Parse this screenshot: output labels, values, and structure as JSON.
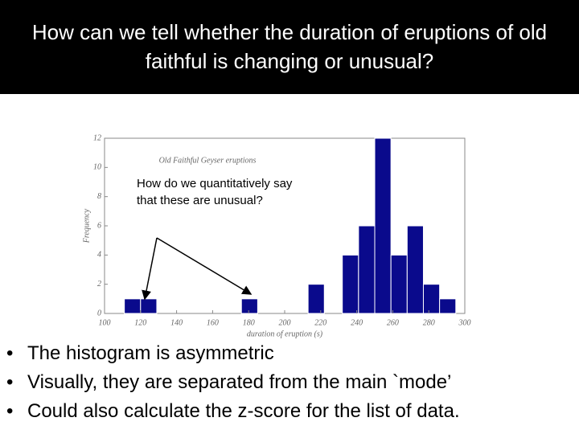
{
  "title": "How can we tell whether the duration of eruptions of old faithful is changing or unusual?",
  "annotation": "How do we quantitatively say that these are unusual?",
  "bullets": [
    "The histogram is asymmetric",
    "Visually, they are separated from the main `mode’",
    "Could also calculate the z-score for the list of data."
  ],
  "chart_data": {
    "type": "histogram",
    "title": "Old Faithful Geyser eruptions",
    "x_label": "duration of eruption (s)",
    "y_label": "Frequency",
    "bins": [
      111,
      120,
      129,
      176,
      185,
      213,
      222,
      232,
      241,
      250,
      259,
      268,
      277,
      286,
      295
    ],
    "values": [
      1,
      1,
      0,
      1,
      0,
      2,
      0,
      4,
      6,
      12,
      4,
      6,
      2,
      1
    ],
    "color": "#0a0a8c",
    "xlim": [
      100,
      300
    ],
    "xticks": [
      100,
      120,
      140,
      160,
      180,
      200,
      220,
      240,
      260,
      280,
      300
    ],
    "ylim": [
      0,
      12
    ],
    "yticks": [
      0,
      2,
      4,
      6,
      8,
      10,
      12
    ]
  }
}
